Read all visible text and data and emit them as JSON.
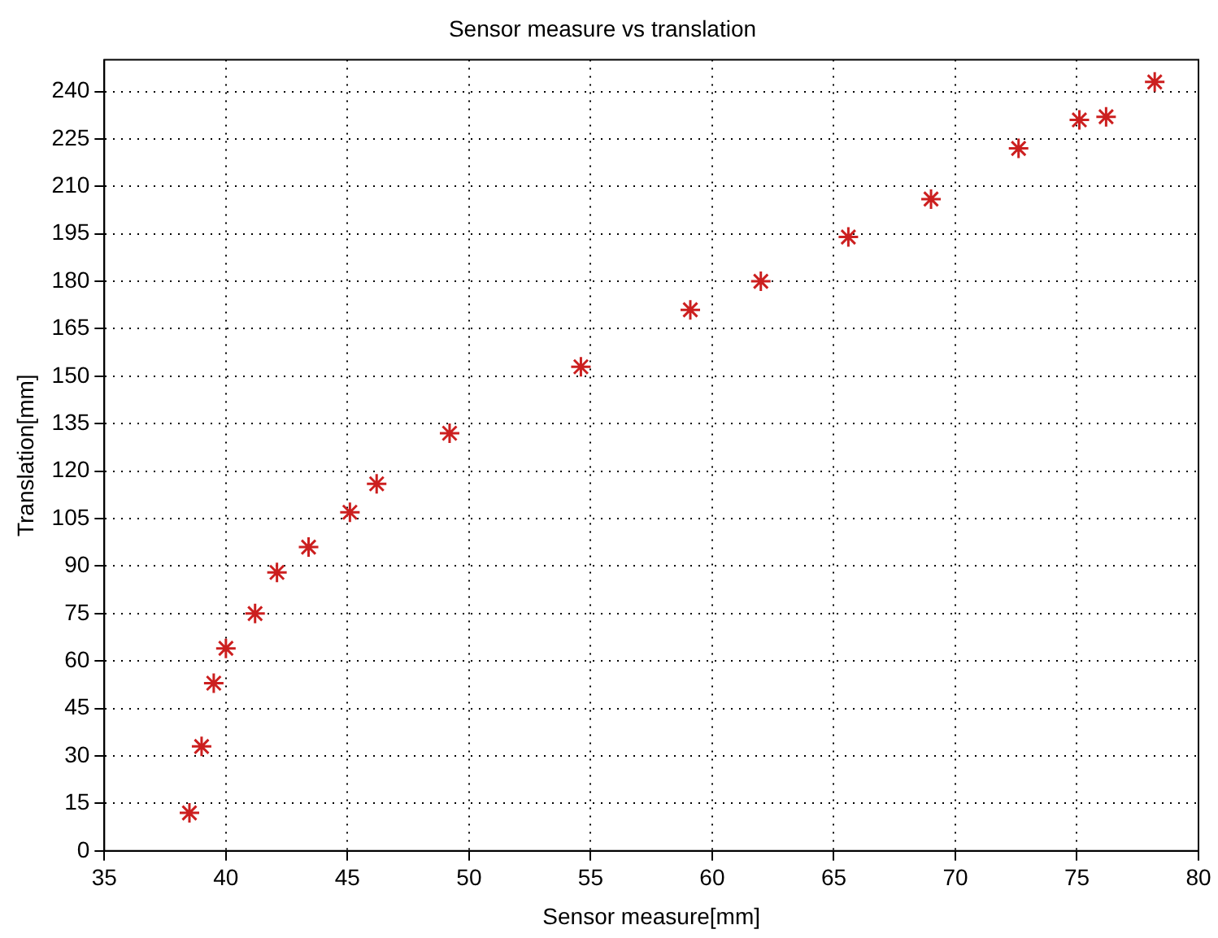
{
  "chart_data": {
    "type": "scatter",
    "title": "Sensor measure vs translation",
    "xlabel": "Sensor measure[mm]",
    "ylabel": "Translation[mm]",
    "x": [
      38.5,
      39,
      39.5,
      40,
      41.2,
      42.1,
      43.4,
      45.1,
      46.2,
      49.2,
      54.6,
      59.1,
      62,
      65.6,
      69,
      72.6,
      75.1,
      76.2,
      78.2
    ],
    "series": [
      {
        "color": "#cc1f1f",
        "values": [
          12,
          33,
          53,
          64,
          75,
          88,
          96,
          107,
          116,
          132,
          153,
          171,
          180,
          194,
          206,
          222,
          231,
          232,
          243
        ]
      }
    ],
    "xlim": [
      35,
      80
    ],
    "xticks": [
      35,
      40,
      45,
      50,
      55,
      60,
      65,
      70,
      75,
      80
    ],
    "ylim": [
      0,
      250
    ],
    "yticks": [
      0,
      15,
      30,
      45,
      60,
      75,
      90,
      105,
      120,
      135,
      150,
      165,
      180,
      195,
      210,
      225,
      240
    ],
    "grid": true,
    "marker": "cross",
    "legend": false
  }
}
